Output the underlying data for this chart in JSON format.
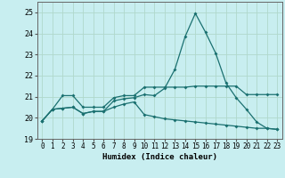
{
  "xlabel": "Humidex (Indice chaleur)",
  "bg_color": "#c8eef0",
  "grid_color": "#b0d8cc",
  "line_color": "#1a7070",
  "xlim": [
    -0.5,
    23.5
  ],
  "ylim": [
    19,
    25.5
  ],
  "yticks": [
    19,
    20,
    21,
    22,
    23,
    24,
    25
  ],
  "xticks": [
    0,
    1,
    2,
    3,
    4,
    5,
    6,
    7,
    8,
    9,
    10,
    11,
    12,
    13,
    14,
    15,
    16,
    17,
    18,
    19,
    20,
    21,
    22,
    23
  ],
  "line1_x": [
    0,
    1,
    2,
    3,
    4,
    5,
    6,
    7,
    8,
    9,
    10,
    11,
    12,
    13,
    14,
    15,
    16,
    17,
    18,
    19,
    20,
    21,
    22,
    23
  ],
  "line1_y": [
    19.85,
    20.4,
    20.45,
    20.5,
    20.2,
    20.3,
    20.3,
    20.8,
    20.9,
    20.95,
    21.1,
    21.05,
    21.4,
    22.3,
    23.85,
    24.95,
    24.05,
    23.05,
    21.65,
    20.95,
    20.4,
    19.8,
    19.5,
    19.45
  ],
  "line2_x": [
    0,
    1,
    2,
    3,
    4,
    5,
    6,
    7,
    8,
    9,
    10,
    11,
    12,
    13,
    14,
    15,
    16,
    17,
    18,
    19,
    20,
    21,
    22,
    23
  ],
  "line2_y": [
    19.85,
    20.4,
    21.05,
    21.05,
    20.5,
    20.5,
    20.5,
    20.95,
    21.05,
    21.05,
    21.45,
    21.45,
    21.45,
    21.45,
    21.45,
    21.5,
    21.5,
    21.5,
    21.5,
    21.5,
    21.1,
    21.1,
    21.1,
    21.1
  ],
  "line3_x": [
    0,
    1,
    2,
    3,
    4,
    5,
    6,
    7,
    8,
    9,
    10,
    11,
    12,
    13,
    14,
    15,
    16,
    17,
    18,
    19,
    20,
    21,
    22,
    23
  ],
  "line3_y": [
    19.85,
    20.4,
    20.45,
    20.5,
    20.2,
    20.3,
    20.3,
    20.5,
    20.65,
    20.75,
    20.15,
    20.05,
    19.95,
    19.9,
    19.85,
    19.8,
    19.75,
    19.7,
    19.65,
    19.6,
    19.55,
    19.5,
    19.5,
    19.45
  ]
}
